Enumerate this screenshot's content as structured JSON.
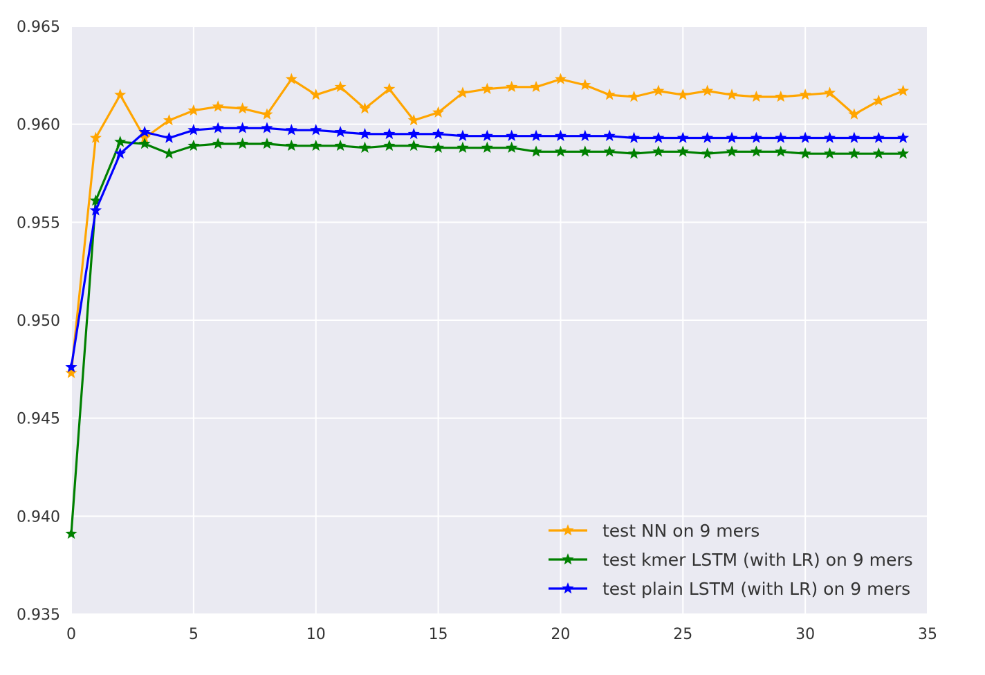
{
  "chart_data": {
    "type": "line",
    "title": "",
    "xlabel": "",
    "ylabel": "",
    "xlim": [
      0,
      35
    ],
    "ylim": [
      0.935,
      0.965
    ],
    "xticks": [
      "0",
      "5",
      "10",
      "15",
      "20",
      "25",
      "30",
      "35"
    ],
    "yticks": [
      "0.935",
      "0.940",
      "0.945",
      "0.950",
      "0.955",
      "0.960",
      "0.965"
    ],
    "grid": true,
    "legend_position": "lower-right",
    "marker": "star",
    "x": [
      0,
      1,
      2,
      3,
      4,
      5,
      6,
      7,
      8,
      9,
      10,
      11,
      12,
      13,
      14,
      15,
      16,
      17,
      18,
      19,
      20,
      21,
      22,
      23,
      24,
      25,
      26,
      27,
      28,
      29,
      30,
      31,
      32,
      33,
      34
    ],
    "series": [
      {
        "name": "test NN on 9 mers",
        "color": "#FFA500",
        "values": [
          0.9473,
          0.9593,
          0.9615,
          0.9593,
          0.9602,
          0.9607,
          0.9609,
          0.9608,
          0.9605,
          0.9623,
          0.9615,
          0.9619,
          0.9608,
          0.9618,
          0.9602,
          0.9606,
          0.9616,
          0.9618,
          0.9619,
          0.9619,
          0.9623,
          0.962,
          0.9615,
          0.9614,
          0.9617,
          0.9615,
          0.9617,
          0.9615,
          0.9614,
          0.9614,
          0.9615,
          0.9616,
          0.9605,
          0.9612,
          0.9617
        ]
      },
      {
        "name": "test kmer LSTM (with LR) on 9 mers",
        "color": "#008000",
        "values": [
          0.9391,
          0.9561,
          0.9591,
          0.959,
          0.9585,
          0.9589,
          0.959,
          0.959,
          0.959,
          0.9589,
          0.9589,
          0.9589,
          0.9588,
          0.9589,
          0.9589,
          0.9588,
          0.9588,
          0.9588,
          0.9588,
          0.9586,
          0.9586,
          0.9586,
          0.9586,
          0.9585,
          0.9586,
          0.9586,
          0.9585,
          0.9586,
          0.9586,
          0.9586,
          0.9585,
          0.9585,
          0.9585,
          0.9585,
          0.9585
        ]
      },
      {
        "name": "test plain LSTM (with LR) on 9 mers",
        "color": "#0000FF",
        "values": [
          0.9476,
          0.9556,
          0.9585,
          0.9596,
          0.9593,
          0.9597,
          0.9598,
          0.9598,
          0.9598,
          0.9597,
          0.9597,
          0.9596,
          0.9595,
          0.9595,
          0.9595,
          0.9595,
          0.9594,
          0.9594,
          0.9594,
          0.9594,
          0.9594,
          0.9594,
          0.9594,
          0.9593,
          0.9593,
          0.9593,
          0.9593,
          0.9593,
          0.9593,
          0.9593,
          0.9593,
          0.9593,
          0.9593,
          0.9593,
          0.9593
        ]
      }
    ]
  }
}
